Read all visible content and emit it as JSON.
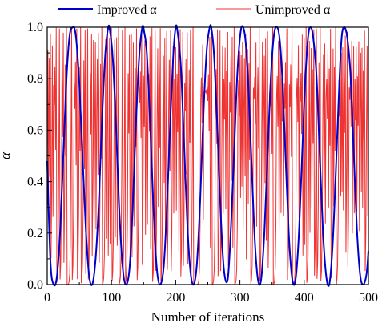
{
  "chart_data": {
    "type": "line",
    "xlabel": "Number of iterations",
    "ylabel": "α",
    "xlim": [
      0,
      500
    ],
    "ylim": [
      0.0,
      1.0
    ],
    "xticks": [
      0,
      100,
      200,
      300,
      400,
      500
    ],
    "yticks": [
      0.0,
      0.2,
      0.4,
      0.6,
      0.8,
      1.0
    ],
    "xtick_labels": [
      "0",
      "100",
      "200",
      "300",
      "400",
      "500"
    ],
    "ytick_labels": [
      "0.0",
      "0.2",
      "0.4",
      "0.6",
      "0.8",
      "1.0"
    ],
    "grid": false,
    "legend_position": "top",
    "series": [
      {
        "name": "Improved α",
        "color": "#0000cc",
        "description_period_iterations": 52.5,
        "x": [
          0,
          5,
          10,
          15,
          20,
          25,
          30,
          35,
          40,
          43,
          46,
          50,
          55,
          60,
          65,
          70,
          75,
          80,
          85,
          90,
          95,
          98,
          102,
          107,
          112,
          117,
          122,
          128,
          133,
          138,
          143,
          148,
          151,
          155,
          160,
          165,
          170,
          175,
          181,
          186,
          191,
          196,
          200,
          203,
          208,
          213,
          218,
          223,
          228,
          233,
          238,
          243,
          248,
          253,
          256,
          260,
          265,
          270,
          275,
          281,
          286,
          291,
          296,
          301,
          305,
          309,
          313,
          318,
          323,
          328,
          333,
          338,
          343,
          348,
          353,
          358,
          362,
          366,
          371,
          376,
          381,
          386,
          391,
          396,
          401,
          406,
          410,
          414,
          419,
          424,
          429,
          434,
          439,
          444,
          449,
          454,
          458,
          462,
          467,
          472,
          477,
          482,
          487,
          492,
          497,
          500
        ],
        "y": [
          0.48,
          0.09,
          0.0,
          0.03,
          0.2,
          0.5,
          0.8,
          0.97,
          1.0,
          0.99,
          0.93,
          0.78,
          0.5,
          0.22,
          0.04,
          0.0,
          0.09,
          0.3,
          0.62,
          0.88,
          1.0,
          0.98,
          0.88,
          0.62,
          0.3,
          0.08,
          0.0,
          0.06,
          0.3,
          0.62,
          0.88,
          1.0,
          0.98,
          0.9,
          0.64,
          0.32,
          0.08,
          0.0,
          0.06,
          0.28,
          0.6,
          0.88,
          1.0,
          0.98,
          0.85,
          0.55,
          0.24,
          0.05,
          0.0,
          0.08,
          0.32,
          0.65,
          0.9,
          1.0,
          0.99,
          0.88,
          0.6,
          0.28,
          0.06,
          0.02,
          0.22,
          0.52,
          0.82,
          0.98,
          1.0,
          0.94,
          0.78,
          0.48,
          0.18,
          0.02,
          0.02,
          0.2,
          0.5,
          0.8,
          0.97,
          1.0,
          0.95,
          0.8,
          0.5,
          0.2,
          0.03,
          0.01,
          0.16,
          0.45,
          0.76,
          0.96,
          1.0,
          0.96,
          0.82,
          0.52,
          0.22,
          0.04,
          0.0,
          0.14,
          0.42,
          0.74,
          0.95,
          1.0,
          0.96,
          0.82,
          0.52,
          0.22,
          0.04,
          0.0,
          0.04,
          0.13
        ]
      },
      {
        "name": "Unimproved α",
        "color": "#ee3333",
        "description": "chaotic logistic-map sequence, x(n+1)=4·x(n)·(1−x(n)), starting near 0.35",
        "x0": 0.35,
        "map_parameter": 4,
        "n_points": 500
      }
    ]
  }
}
